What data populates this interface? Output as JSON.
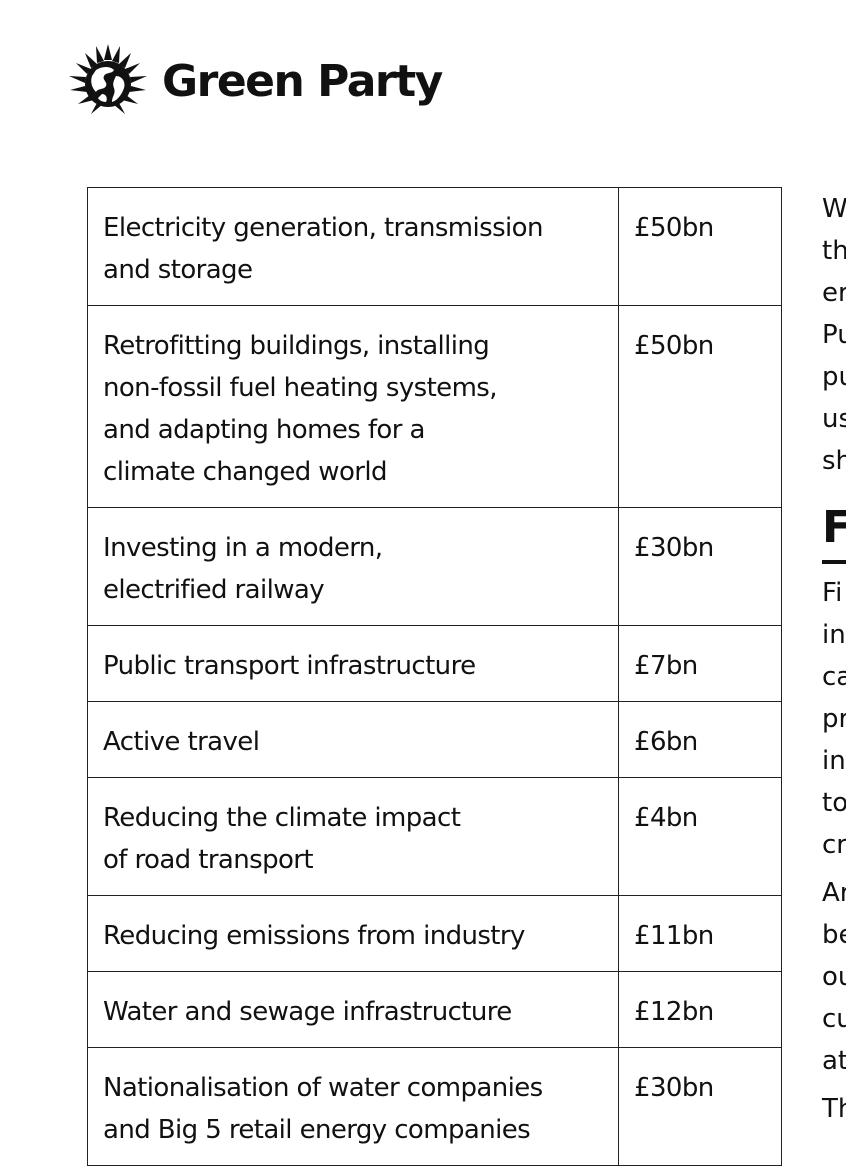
{
  "brand": {
    "name": "Green Party",
    "logo_icon": "sun-globe-icon"
  },
  "costs_table": {
    "rows": [
      {
        "item": [
          "Electricity generation, transmission",
          "and storage"
        ],
        "amount": "£50bn"
      },
      {
        "item": [
          "Retrofitting buildings, installing",
          "non-fossil fuel heating systems,",
          "and adapting homes for a",
          "climate changed world"
        ],
        "amount": "£50bn"
      },
      {
        "item": [
          "Investing in a modern,",
          "electrified railway"
        ],
        "amount": "£30bn"
      },
      {
        "item": [
          "Public transport infrastructure"
        ],
        "amount": "£7bn"
      },
      {
        "item": [
          "Active travel"
        ],
        "amount": "£6bn"
      },
      {
        "item": [
          "Reducing the climate impact",
          "of road transport"
        ],
        "amount": "£4bn"
      },
      {
        "item": [
          "Reducing emissions from industry"
        ],
        "amount": "£11bn"
      },
      {
        "item": [
          "Water and sewage infrastructure"
        ],
        "amount": "£12bn"
      },
      {
        "item": [
          "Nationalisation of water companies",
          "and Big 5 retail energy companies"
        ],
        "amount": "£30bn"
      }
    ]
  },
  "side_column": {
    "para1_lines": [
      "W",
      "th",
      "er",
      "Pu",
      "pu",
      "us",
      "sh"
    ],
    "heading": "F",
    "para2_lines": [
      "Fi",
      "in",
      "ca",
      "pr",
      "in",
      "to",
      "cr"
    ],
    "para3_lines": [
      "Ar",
      "be",
      "ou",
      "cu",
      "at"
    ],
    "para4_lines": [
      "Th"
    ]
  }
}
